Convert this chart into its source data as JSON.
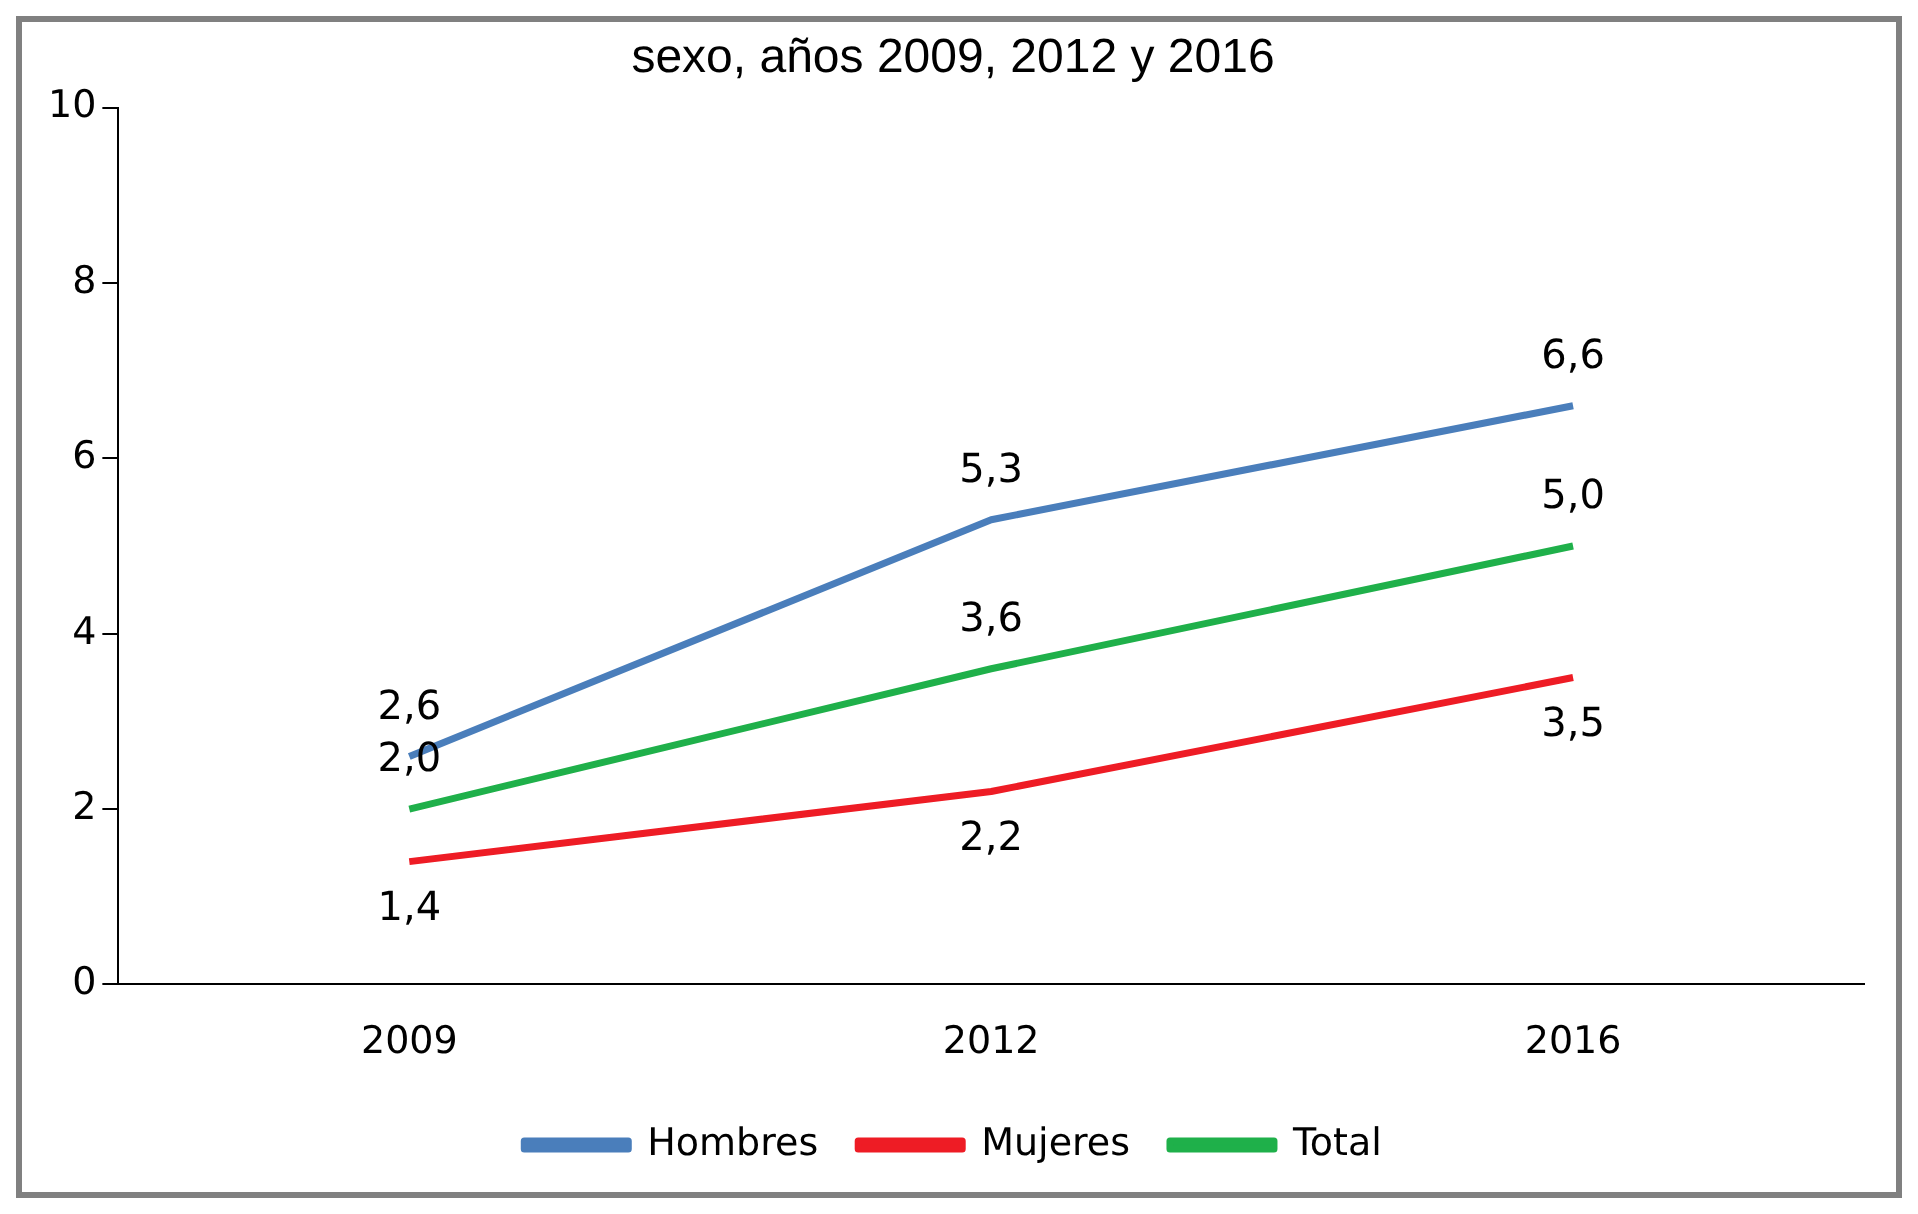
{
  "chart_data": {
    "type": "line",
    "title": "sexo, años 2009, 2012 y 2016",
    "categories": [
      "2009",
      "2012",
      "2016"
    ],
    "series": [
      {
        "name": "Hombres",
        "color": "#4a7ebb",
        "values": [
          2.6,
          5.3,
          6.6
        ],
        "value_labels": [
          "2,6",
          "5,3",
          "6,6"
        ]
      },
      {
        "name": "Mujeres",
        "color": "#ee1c25",
        "values": [
          1.4,
          2.2,
          3.5
        ],
        "value_labels": [
          "1,4",
          "2,2",
          "3,5"
        ]
      },
      {
        "name": "Total",
        "color": "#1fb04a",
        "values": [
          2.0,
          3.6,
          5.0
        ],
        "value_labels": [
          "2,0",
          "3,6",
          "5,0"
        ]
      }
    ],
    "ylim": [
      0,
      10
    ],
    "yticks": [
      0,
      2,
      4,
      6,
      8,
      10
    ],
    "grid": false,
    "legend": "bottom",
    "marker": "none",
    "line_style": "solid"
  }
}
